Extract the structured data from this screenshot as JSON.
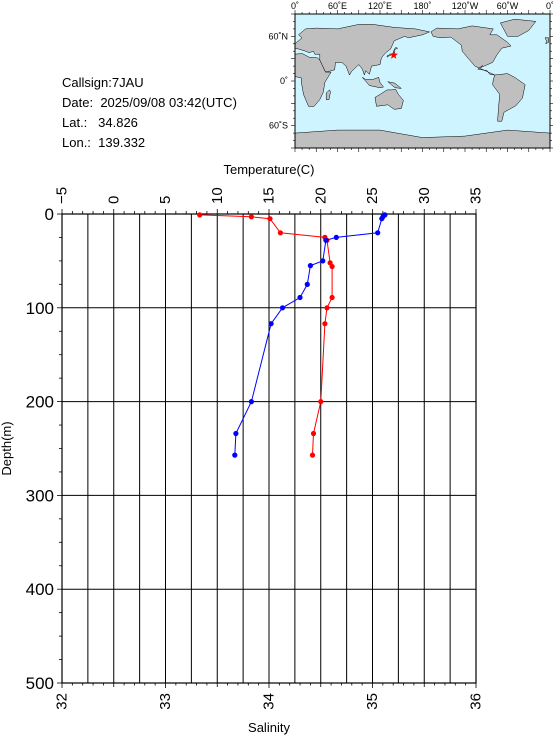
{
  "station": {
    "callsign_label": "Callsign:",
    "callsign": "7JAU",
    "date_label": "Date:",
    "date": "2025/09/08 03:42(UTC)",
    "lat_label": "Lat.:",
    "lat": "34.826",
    "lon_label": "Lon.:",
    "lon": "139.332"
  },
  "map": {
    "lon_ticks": [
      "0˚",
      "60˚E",
      "120˚E",
      "180˚",
      "120˚W",
      "60˚W",
      "0˚"
    ],
    "lat_ticks": [
      "60˚N",
      "0˚",
      "60˚S"
    ],
    "marker": {
      "lat": 34.826,
      "lon": 139.332
    },
    "ocean_color": "#cdf4ff",
    "land_color": "#bfbfbf",
    "marker_color": "#ff0000"
  },
  "chart_data": {
    "type": "line",
    "x_top": {
      "label": "Temperature(C)",
      "range": [
        -5,
        35
      ],
      "ticks": [
        -5,
        0,
        5,
        10,
        15,
        20,
        25,
        30,
        35
      ]
    },
    "x_bottom": {
      "label": "Salinity",
      "range": [
        32,
        36
      ],
      "ticks": [
        32,
        33,
        34,
        35,
        36
      ]
    },
    "y": {
      "label": "Depth(m)",
      "range": [
        0,
        500
      ],
      "ticks": [
        0,
        100,
        200,
        300,
        400,
        500
      ],
      "inverted": true
    },
    "grid": true,
    "series": [
      {
        "axis": "temperature",
        "color": "#ff0000",
        "points": [
          [
            8.3,
            1
          ],
          [
            13.3,
            3
          ],
          [
            15.1,
            5
          ],
          [
            16.1,
            20
          ],
          [
            20.4,
            25
          ],
          [
            20.6,
            28
          ],
          [
            20.9,
            52
          ],
          [
            21.1,
            56
          ],
          [
            21.1,
            89
          ],
          [
            20.6,
            100
          ],
          [
            20.4,
            117
          ],
          [
            20.0,
            200
          ],
          [
            19.3,
            234
          ],
          [
            19.2,
            257
          ]
        ]
      },
      {
        "axis": "salinity",
        "color": "#0000ff",
        "points": [
          [
            35.12,
            1
          ],
          [
            35.1,
            3
          ],
          [
            35.09,
            5
          ],
          [
            35.05,
            20
          ],
          [
            34.65,
            25
          ],
          [
            34.55,
            28
          ],
          [
            34.52,
            50
          ],
          [
            34.4,
            55
          ],
          [
            34.37,
            75
          ],
          [
            34.3,
            89
          ],
          [
            34.13,
            100
          ],
          [
            34.02,
            117
          ],
          [
            33.83,
            200
          ],
          [
            33.68,
            234
          ],
          [
            33.67,
            257
          ]
        ]
      }
    ]
  }
}
